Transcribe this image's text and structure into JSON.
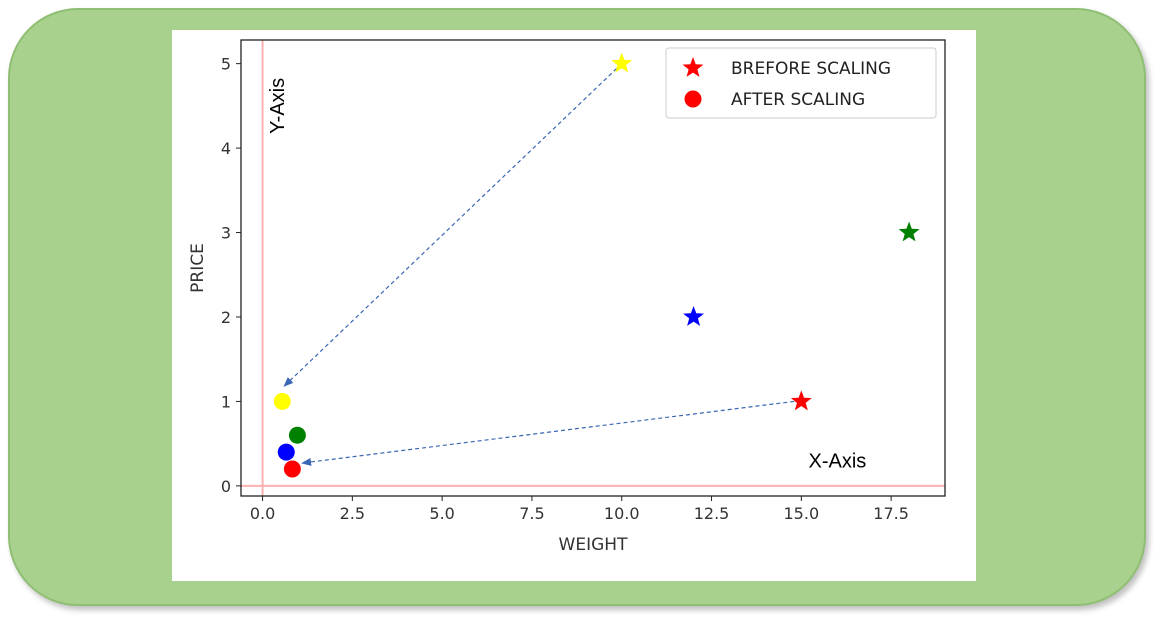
{
  "chart_data": {
    "type": "scatter",
    "title": "",
    "xlabel": "WEIGHT",
    "ylabel": "PRICE",
    "xlim": [
      -0.6,
      19.0
    ],
    "ylim": [
      -0.12,
      5.28
    ],
    "xticks": [
      0.0,
      2.5,
      5.0,
      7.5,
      10.0,
      12.5,
      15.0,
      17.5
    ],
    "xtick_labels": [
      "0.0",
      "2.5",
      "5.0",
      "7.5",
      "10.0",
      "12.5",
      "15.0",
      "17.5"
    ],
    "yticks": [
      0,
      1,
      2,
      3,
      4,
      5
    ],
    "ytick_labels": [
      "0",
      "1",
      "2",
      "3",
      "4",
      "5"
    ],
    "grid": false,
    "legend_position": "top-right",
    "series": [
      {
        "name": "BREFORE SCALING",
        "marker": "star",
        "points": [
          {
            "x": 10,
            "y": 5,
            "color": "#ffff00"
          },
          {
            "x": 18,
            "y": 3,
            "color": "#008000"
          },
          {
            "x": 12,
            "y": 2,
            "color": "#0000ff"
          },
          {
            "x": 15,
            "y": 1,
            "color": "#ff0000"
          }
        ]
      },
      {
        "name": "AFTER SCALING",
        "marker": "circle",
        "points": [
          {
            "x": 0.55,
            "y": 1.0,
            "color": "#ffff00"
          },
          {
            "x": 0.97,
            "y": 0.6,
            "color": "#008000"
          },
          {
            "x": 0.66,
            "y": 0.4,
            "color": "#0000ff"
          },
          {
            "x": 0.83,
            "y": 0.2,
            "color": "#ff0000"
          }
        ]
      }
    ],
    "legend_marker_color": "#ff0000",
    "reference_lines": {
      "x": 0,
      "y": 0,
      "color": "#ffb0b0"
    },
    "annotations": [
      {
        "text": "Y-Axis",
        "x": 0.6,
        "y": 4.5,
        "orientation": "vertical"
      },
      {
        "text": "X-Axis",
        "x": 15.2,
        "y": 0.22,
        "orientation": "horizontal"
      }
    ],
    "arrows": [
      {
        "from": [
          10,
          5
        ],
        "to": [
          0.6,
          1.18
        ],
        "color": "#3a66b5",
        "style": "dashed"
      },
      {
        "from": [
          14.8,
          1.0
        ],
        "to": [
          1.1,
          0.27
        ],
        "color": "#3a66b5",
        "style": "dashed"
      }
    ]
  }
}
